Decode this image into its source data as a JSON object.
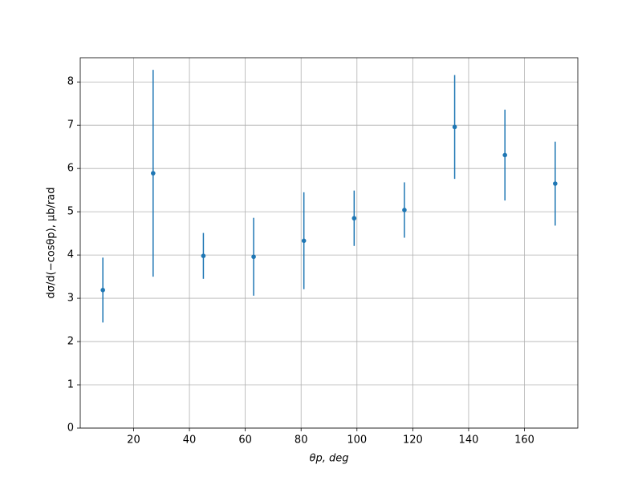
{
  "chart_data": {
    "type": "errorbar",
    "xlabel": "θp, deg",
    "ylabel": "dσ/d(−cosθp), μb/rad",
    "x": [
      9,
      27,
      45,
      63,
      81,
      99,
      117,
      135,
      153,
      171
    ],
    "series": [
      {
        "color": "#1f77b4",
        "values": [
          3.19,
          5.89,
          3.98,
          3.96,
          4.33,
          4.85,
          5.04,
          6.96,
          6.31,
          5.65
        ],
        "errors": [
          0.75,
          2.39,
          0.53,
          0.9,
          1.12,
          0.64,
          0.64,
          1.2,
          1.05,
          0.97
        ]
      }
    ],
    "xlim": [
      0.9,
      179.1
    ],
    "ylim": [
      0,
      8.56
    ],
    "xticks": [
      20,
      40,
      60,
      80,
      100,
      120,
      140,
      160
    ],
    "yticks": [
      0,
      1,
      2,
      3,
      4,
      5,
      6,
      7,
      8
    ],
    "grid": true
  }
}
